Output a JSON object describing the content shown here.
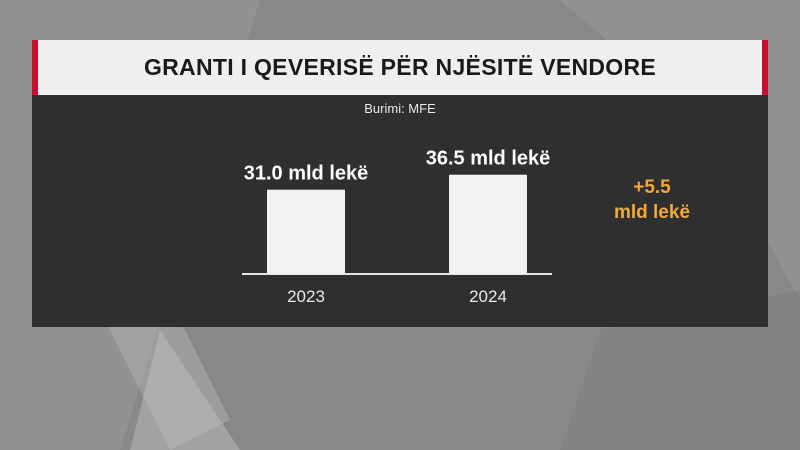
{
  "header": {
    "title": "GRANTI I QEVERISË PËR NJËSITË VENDORE"
  },
  "source": "Burimi: MFE",
  "chart_data": {
    "type": "bar",
    "categories": [
      "2023",
      "2024"
    ],
    "values": [
      31.0,
      36.5
    ],
    "data_labels": [
      "31.0 mld lekë",
      "36.5 mld lekë"
    ],
    "unit": "mld lekë",
    "title": "GRANTI I QEVERISË PËR NJËSITË VENDORE",
    "grid": false
  },
  "annotation": {
    "line1": "+5.5",
    "line2": "mld lekë"
  },
  "colors": {
    "accent": "#c8102e",
    "bar": "#f2f2f2",
    "panel": "#2f2f2f",
    "highlight": "#f0a93b"
  }
}
